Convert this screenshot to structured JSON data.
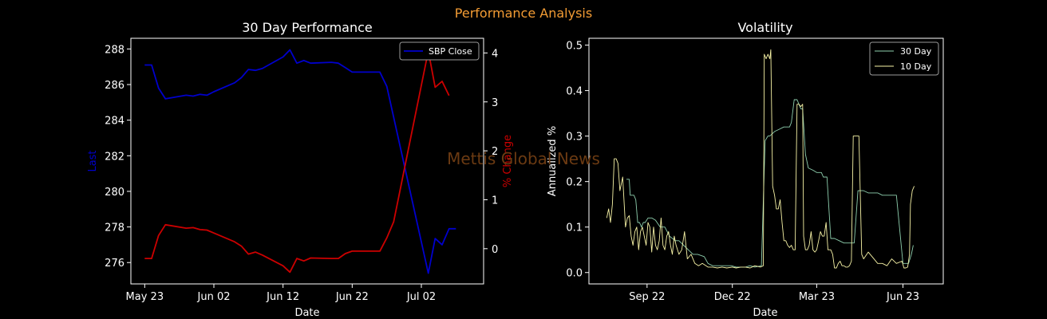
{
  "figure": {
    "suptitle": "Performance Analysis",
    "watermark": "Mettis Global News",
    "suptitle_color": "#f39c34",
    "watermark_color": "#6b3a12"
  },
  "chart_data": [
    {
      "type": "line",
      "title": "30 Day Performance",
      "xlabel": "Date",
      "ylabel": "Last",
      "ylabel_color": "#0000cc",
      "y2label": "% Change",
      "y2label_color": "#cc0000",
      "legend": {
        "position": "top-right",
        "entries": [
          "SBP Close"
        ]
      },
      "xlim": [
        "2023-05-21",
        "2023-07-11"
      ],
      "ylim": [
        274.8,
        288.6
      ],
      "y2lim": [
        -0.72,
        4.3
      ],
      "x_ticks": [
        {
          "value": "2023-05-23",
          "label": "May 23"
        },
        {
          "value": "2023-06-02",
          "label": "Jun 02"
        },
        {
          "value": "2023-06-12",
          "label": "Jun 12"
        },
        {
          "value": "2023-06-22",
          "label": "Jun 22"
        },
        {
          "value": "2023-07-02",
          "label": "Jul 02"
        }
      ],
      "y_ticks": [
        276,
        278,
        280,
        282,
        284,
        286,
        288
      ],
      "y2_ticks": [
        0,
        1,
        2,
        3,
        4
      ],
      "series": [
        {
          "name": "SBP Close",
          "axis": "left",
          "color": "#0000cc",
          "x": [
            "2023-05-23",
            "2023-05-24",
            "2023-05-25",
            "2023-05-26",
            "2023-05-29",
            "2023-05-30",
            "2023-05-31",
            "2023-06-01",
            "2023-06-02",
            "2023-06-05",
            "2023-06-06",
            "2023-06-07",
            "2023-06-08",
            "2023-06-09",
            "2023-06-12",
            "2023-06-13",
            "2023-06-14",
            "2023-06-15",
            "2023-06-16",
            "2023-06-19",
            "2023-06-20",
            "2023-06-21",
            "2023-06-22",
            "2023-06-23",
            "2023-06-26",
            "2023-06-27",
            "2023-07-03",
            "2023-07-04",
            "2023-07-05",
            "2023-07-06",
            "2023-07-07"
          ],
          "y": [
            287.1,
            287.1,
            285.8,
            285.2,
            285.4,
            285.35,
            285.45,
            285.4,
            285.6,
            286.1,
            286.4,
            286.85,
            286.8,
            286.9,
            287.55,
            287.95,
            287.2,
            287.35,
            287.2,
            287.25,
            287.2,
            286.95,
            286.7,
            286.7,
            286.7,
            285.9,
            275.4,
            277.35,
            277.0,
            277.9,
            277.9
          ]
        },
        {
          "name": "% Change",
          "axis": "right",
          "color": "#cc0000",
          "x": [
            "2023-05-23",
            "2023-05-24",
            "2023-05-25",
            "2023-05-26",
            "2023-05-29",
            "2023-05-30",
            "2023-05-31",
            "2023-06-01",
            "2023-06-02",
            "2023-06-05",
            "2023-06-06",
            "2023-06-07",
            "2023-06-08",
            "2023-06-09",
            "2023-06-12",
            "2023-06-13",
            "2023-06-14",
            "2023-06-15",
            "2023-06-16",
            "2023-06-19",
            "2023-06-20",
            "2023-06-21",
            "2023-06-22",
            "2023-06-23",
            "2023-06-26",
            "2023-06-27",
            "2023-06-28",
            "2023-07-03",
            "2023-07-04",
            "2023-07-05",
            "2023-07-06"
          ],
          "y": [
            -0.2,
            -0.2,
            0.27,
            0.49,
            0.42,
            0.43,
            0.39,
            0.38,
            0.32,
            0.14,
            0.05,
            -0.11,
            -0.07,
            -0.13,
            -0.35,
            -0.48,
            -0.2,
            -0.25,
            -0.19,
            -0.2,
            -0.2,
            -0.1,
            -0.05,
            -0.05,
            -0.05,
            0.22,
            0.55,
            4.04,
            3.3,
            3.42,
            3.13
          ]
        }
      ]
    },
    {
      "type": "line",
      "title": "Volatility",
      "xlabel": "Date",
      "ylabel": "Annualized %",
      "legend": {
        "position": "top-right",
        "entries": [
          "30 Day",
          "10 Day"
        ]
      },
      "xlim": [
        "2022-07-01",
        "2023-07-14"
      ],
      "ylim": [
        -0.025,
        0.515
      ],
      "x_ticks": [
        {
          "value": "2022-09-01",
          "label": "Sep 22"
        },
        {
          "value": "2022-12-01",
          "label": "Dec 22"
        },
        {
          "value": "2023-03-01",
          "label": "Mar 23"
        },
        {
          "value": "2023-06-01",
          "label": "Jun 23"
        }
      ],
      "y_ticks": [
        0.0,
        0.1,
        0.2,
        0.3,
        0.4,
        0.5
      ],
      "y_tick_labels": [
        "0.0",
        "0.1",
        "0.2",
        "0.3",
        "0.4",
        "0.5"
      ],
      "series": [
        {
          "name": "30 Day",
          "color": "#8ecfae",
          "x": [
            "2022-08-10",
            "2022-08-13",
            "2022-08-14",
            "2022-08-16",
            "2022-08-18",
            "2022-08-20",
            "2022-08-22",
            "2022-08-24",
            "2022-08-26",
            "2022-08-28",
            "2022-08-30",
            "2022-09-02",
            "2022-09-06",
            "2022-09-10",
            "2022-09-15",
            "2022-09-20",
            "2022-09-25",
            "2022-10-01",
            "2022-10-05",
            "2022-10-10",
            "2022-10-15",
            "2022-10-20",
            "2022-10-25",
            "2022-11-01",
            "2022-11-05",
            "2022-11-10",
            "2022-11-15",
            "2022-11-20",
            "2022-11-25",
            "2022-11-30",
            "2022-12-05",
            "2022-12-10",
            "2022-12-15",
            "2022-12-20",
            "2022-12-25",
            "2023-01-01",
            "2023-01-05",
            "2023-01-08",
            "2023-01-10",
            "2023-01-15",
            "2023-01-20",
            "2023-01-25",
            "2023-01-31",
            "2023-02-02",
            "2023-02-05",
            "2023-02-08",
            "2023-02-12",
            "2023-02-14",
            "2023-02-17",
            "2023-02-20",
            "2023-02-25",
            "2023-03-01",
            "2023-03-04",
            "2023-03-06",
            "2023-03-08",
            "2023-03-12",
            "2023-03-16",
            "2023-03-20",
            "2023-03-25",
            "2023-03-30",
            "2023-04-05",
            "2023-04-10",
            "2023-04-14",
            "2023-04-16",
            "2023-04-20",
            "2023-04-25",
            "2023-05-01",
            "2023-05-05",
            "2023-05-10",
            "2023-05-15",
            "2023-05-20",
            "2023-05-25",
            "2023-06-01",
            "2023-06-03",
            "2023-06-07",
            "2023-06-10",
            "2023-06-12"
          ],
          "y": [
            0.205,
            0.205,
            0.17,
            0.17,
            0.17,
            0.16,
            0.11,
            0.11,
            0.1,
            0.11,
            0.11,
            0.12,
            0.12,
            0.115,
            0.1,
            0.1,
            0.08,
            0.07,
            0.07,
            0.06,
            0.05,
            0.04,
            0.04,
            0.035,
            0.02,
            0.015,
            0.015,
            0.015,
            0.015,
            0.015,
            0.012,
            0.012,
            0.012,
            0.015,
            0.012,
            0.015,
            0.29,
            0.3,
            0.3,
            0.31,
            0.315,
            0.32,
            0.32,
            0.33,
            0.38,
            0.38,
            0.36,
            0.36,
            0.26,
            0.23,
            0.225,
            0.22,
            0.22,
            0.22,
            0.21,
            0.21,
            0.075,
            0.075,
            0.07,
            0.065,
            0.065,
            0.065,
            0.18,
            0.18,
            0.18,
            0.175,
            0.175,
            0.175,
            0.17,
            0.17,
            0.17,
            0.17,
            0.02,
            0.02,
            0.02,
            0.04,
            0.06
          ]
        },
        {
          "name": "10 Day",
          "color": "#f7f3a6",
          "x": [
            "2022-07-20",
            "2022-07-22",
            "2022-07-24",
            "2022-07-26",
            "2022-07-28",
            "2022-07-30",
            "2022-08-01",
            "2022-08-03",
            "2022-08-06",
            "2022-08-09",
            "2022-08-11",
            "2022-08-13",
            "2022-08-15",
            "2022-08-17",
            "2022-08-19",
            "2022-08-21",
            "2022-08-23",
            "2022-08-25",
            "2022-08-27",
            "2022-08-29",
            "2022-08-31",
            "2022-09-02",
            "2022-09-04",
            "2022-09-06",
            "2022-09-08",
            "2022-09-10",
            "2022-09-12",
            "2022-09-14",
            "2022-09-16",
            "2022-09-18",
            "2022-09-20",
            "2022-09-22",
            "2022-09-24",
            "2022-09-26",
            "2022-09-28",
            "2022-09-30",
            "2022-10-02",
            "2022-10-05",
            "2022-10-08",
            "2022-10-11",
            "2022-10-14",
            "2022-10-18",
            "2022-10-22",
            "2022-10-26",
            "2022-10-30",
            "2022-11-05",
            "2022-11-10",
            "2022-11-15",
            "2022-11-20",
            "2022-11-25",
            "2022-12-01",
            "2022-12-05",
            "2022-12-10",
            "2022-12-15",
            "2022-12-20",
            "2022-12-25",
            "2022-12-31",
            "2023-01-03",
            "2023-01-04",
            "2023-01-06",
            "2023-01-08",
            "2023-01-10",
            "2023-01-11",
            "2023-01-13",
            "2023-01-15",
            "2023-01-17",
            "2023-01-19",
            "2023-01-21",
            "2023-01-23",
            "2023-01-25",
            "2023-01-27",
            "2023-01-29",
            "2023-01-31",
            "2023-02-02",
            "2023-02-04",
            "2023-02-06",
            "2023-02-08",
            "2023-02-10",
            "2023-02-12",
            "2023-02-14",
            "2023-02-15",
            "2023-02-17",
            "2023-02-19",
            "2023-02-21",
            "2023-02-23",
            "2023-02-25",
            "2023-02-27",
            "2023-03-01",
            "2023-03-03",
            "2023-03-05",
            "2023-03-07",
            "2023-03-09",
            "2023-03-11",
            "2023-03-13",
            "2023-03-16",
            "2023-03-18",
            "2023-03-20",
            "2023-03-22",
            "2023-03-24",
            "2023-03-26",
            "2023-03-28",
            "2023-03-30",
            "2023-04-01",
            "2023-04-03",
            "2023-04-05",
            "2023-04-07",
            "2023-04-09",
            "2023-04-11",
            "2023-04-13",
            "2023-04-15",
            "2023-04-18",
            "2023-04-20",
            "2023-04-25",
            "2023-05-01",
            "2023-05-05",
            "2023-05-10",
            "2023-05-15",
            "2023-05-20",
            "2023-05-25",
            "2023-05-31",
            "2023-06-02",
            "2023-06-04",
            "2023-06-06",
            "2023-06-08",
            "2023-06-09",
            "2023-06-11",
            "2023-06-13"
          ],
          "y": [
            0.12,
            0.14,
            0.11,
            0.15,
            0.25,
            0.25,
            0.24,
            0.18,
            0.21,
            0.1,
            0.12,
            0.125,
            0.08,
            0.06,
            0.09,
            0.1,
            0.05,
            0.09,
            0.1,
            0.08,
            0.06,
            0.11,
            0.1,
            0.045,
            0.1,
            0.06,
            0.05,
            0.07,
            0.12,
            0.06,
            0.05,
            0.08,
            0.09,
            0.06,
            0.04,
            0.08,
            0.06,
            0.04,
            0.05,
            0.09,
            0.03,
            0.04,
            0.02,
            0.015,
            0.02,
            0.012,
            0.012,
            0.01,
            0.012,
            0.01,
            0.012,
            0.01,
            0.012,
            0.012,
            0.01,
            0.015,
            0.012,
            0.015,
            0.48,
            0.47,
            0.48,
            0.47,
            0.49,
            0.19,
            0.17,
            0.14,
            0.14,
            0.16,
            0.11,
            0.07,
            0.07,
            0.06,
            0.055,
            0.06,
            0.05,
            0.05,
            0.37,
            0.37,
            0.365,
            0.37,
            0.08,
            0.05,
            0.05,
            0.06,
            0.09,
            0.05,
            0.045,
            0.05,
            0.07,
            0.09,
            0.08,
            0.08,
            0.11,
            0.05,
            0.05,
            0.04,
            0.01,
            0.01,
            0.02,
            0.025,
            0.015,
            0.015,
            0.012,
            0.012,
            0.015,
            0.025,
            0.3,
            0.3,
            0.3,
            0.3,
            0.04,
            0.03,
            0.045,
            0.03,
            0.02,
            0.02,
            0.015,
            0.03,
            0.02,
            0.025,
            0.01,
            0.01,
            0.012,
            0.04,
            0.15,
            0.18,
            0.19
          ]
        }
      ]
    }
  ]
}
